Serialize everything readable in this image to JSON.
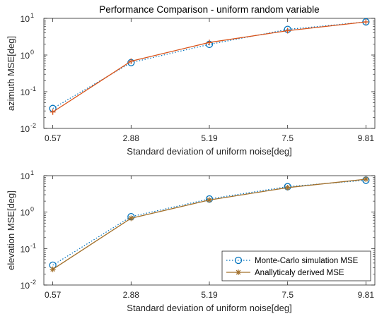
{
  "chart_data": [
    {
      "type": "line",
      "title": "Performance Comparison  - uniform random variable",
      "xlabel": "Standard deviation of uniform noise[deg]",
      "ylabel": "azimuth MSE[deg]",
      "x": [
        0.57,
        2.88,
        5.19,
        7.5,
        9.81
      ],
      "xticks": [
        "0.57",
        "2.88",
        "5.19",
        "7.5",
        "9.81"
      ],
      "yscale": "log",
      "ylim": [
        0.01,
        10
      ],
      "yticks": [
        {
          "base": "10",
          "exp": "-2"
        },
        {
          "base": "10",
          "exp": "-1"
        },
        {
          "base": "10",
          "exp": "0"
        },
        {
          "base": "10",
          "exp": "1"
        }
      ],
      "grid": false,
      "series": [
        {
          "values": [
            0.035,
            0.62,
            1.95,
            5.0,
            8.0
          ],
          "color": "#0072BD",
          "style": "dotted",
          "marker": "circle"
        },
        {
          "values": [
            0.028,
            0.68,
            2.2,
            4.6,
            8.0
          ],
          "color": "#D95319",
          "style": "solid",
          "marker": "plus"
        }
      ]
    },
    {
      "type": "line",
      "xlabel": "Standard deviation of uniform noise[deg]",
      "ylabel": "elevation MSE[deg]",
      "x": [
        0.57,
        2.88,
        5.19,
        7.5,
        9.81
      ],
      "xticks": [
        "0.57",
        "2.88",
        "5.19",
        "7.5",
        "9.81"
      ],
      "yscale": "log",
      "ylim": [
        0.01,
        10
      ],
      "yticks": [
        {
          "base": "10",
          "exp": "-2"
        },
        {
          "base": "10",
          "exp": "-1"
        },
        {
          "base": "10",
          "exp": "0"
        },
        {
          "base": "10",
          "exp": "1"
        }
      ],
      "grid": false,
      "legend_position": "bottom-right",
      "series": [
        {
          "name": "Monte-Carlo simulation MSE",
          "values": [
            0.035,
            0.75,
            2.3,
            5.0,
            7.5
          ],
          "color": "#0072BD",
          "style": "dotted",
          "marker": "circle"
        },
        {
          "name": "Anallyticaly derived MSE",
          "values": [
            0.027,
            0.68,
            2.15,
            4.7,
            8.0
          ],
          "color": "#A2702B",
          "style": "solid",
          "marker": "star"
        }
      ]
    }
  ]
}
